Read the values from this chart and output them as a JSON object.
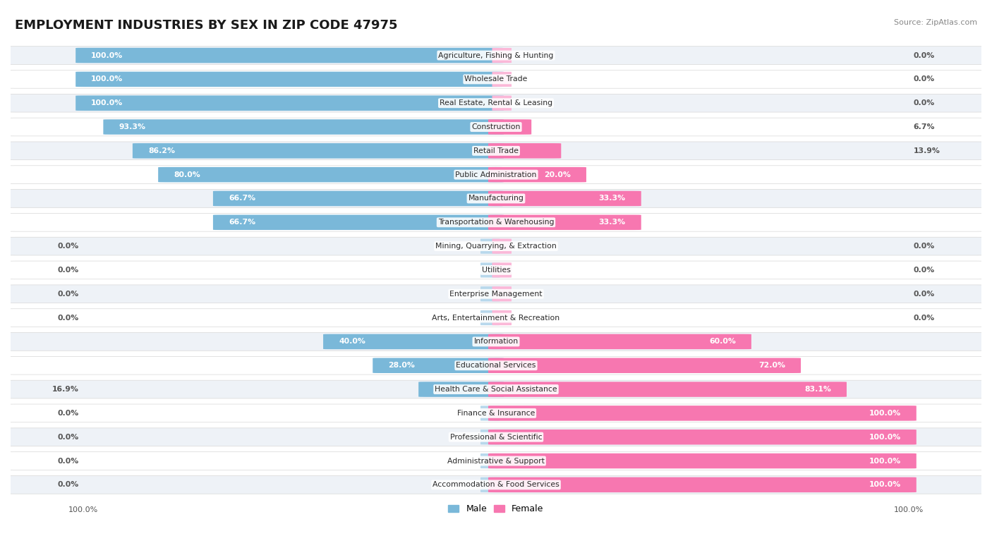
{
  "title": "EMPLOYMENT INDUSTRIES BY SEX IN ZIP CODE 47975",
  "source": "Source: ZipAtlas.com",
  "categories": [
    "Agriculture, Fishing & Hunting",
    "Wholesale Trade",
    "Real Estate, Rental & Leasing",
    "Construction",
    "Retail Trade",
    "Public Administration",
    "Manufacturing",
    "Transportation & Warehousing",
    "Mining, Quarrying, & Extraction",
    "Utilities",
    "Enterprise Management",
    "Arts, Entertainment & Recreation",
    "Information",
    "Educational Services",
    "Health Care & Social Assistance",
    "Finance & Insurance",
    "Professional & Scientific",
    "Administrative & Support",
    "Accommodation & Food Services"
  ],
  "male_pct": [
    100.0,
    100.0,
    100.0,
    93.3,
    86.2,
    80.0,
    66.7,
    66.7,
    0.0,
    0.0,
    0.0,
    0.0,
    40.0,
    28.0,
    16.9,
    0.0,
    0.0,
    0.0,
    0.0
  ],
  "female_pct": [
    0.0,
    0.0,
    0.0,
    6.7,
    13.9,
    20.0,
    33.3,
    33.3,
    0.0,
    0.0,
    0.0,
    0.0,
    60.0,
    72.0,
    83.1,
    100.0,
    100.0,
    100.0,
    100.0
  ],
  "male_color": "#7ab8d9",
  "female_color": "#f777b0",
  "male_stub_color": "#b8d8ec",
  "female_stub_color": "#fbb8d8",
  "row_even_color": "#eef2f7",
  "row_odd_color": "#ffffff",
  "title_color": "#1a1a1a",
  "label_color": "#555555",
  "pct_inside_color": "#ffffff",
  "pct_outside_color": "#555555"
}
